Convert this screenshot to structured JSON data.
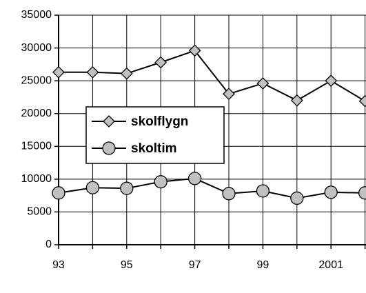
{
  "chart_data": {
    "type": "line",
    "categories": [
      "93",
      null,
      "95",
      null,
      "97",
      null,
      "99",
      null,
      "2001",
      null
    ],
    "series": [
      {
        "name": "skolflygn",
        "color": "#c0c0c0",
        "marker": "diamond",
        "values": [
          26300,
          26300,
          26100,
          27800,
          29600,
          23000,
          24600,
          22000,
          25000,
          21900
        ]
      },
      {
        "name": "skoltim",
        "color": "#c0c0c0",
        "marker": "circle",
        "values": [
          7900,
          8700,
          8600,
          9600,
          10100,
          7800,
          8200,
          7100,
          8000,
          7900
        ]
      }
    ],
    "ylim": [
      0,
      35000
    ],
    "yticks": [
      0,
      5000,
      10000,
      15000,
      20000,
      25000,
      30000,
      35000
    ],
    "grid": true
  }
}
